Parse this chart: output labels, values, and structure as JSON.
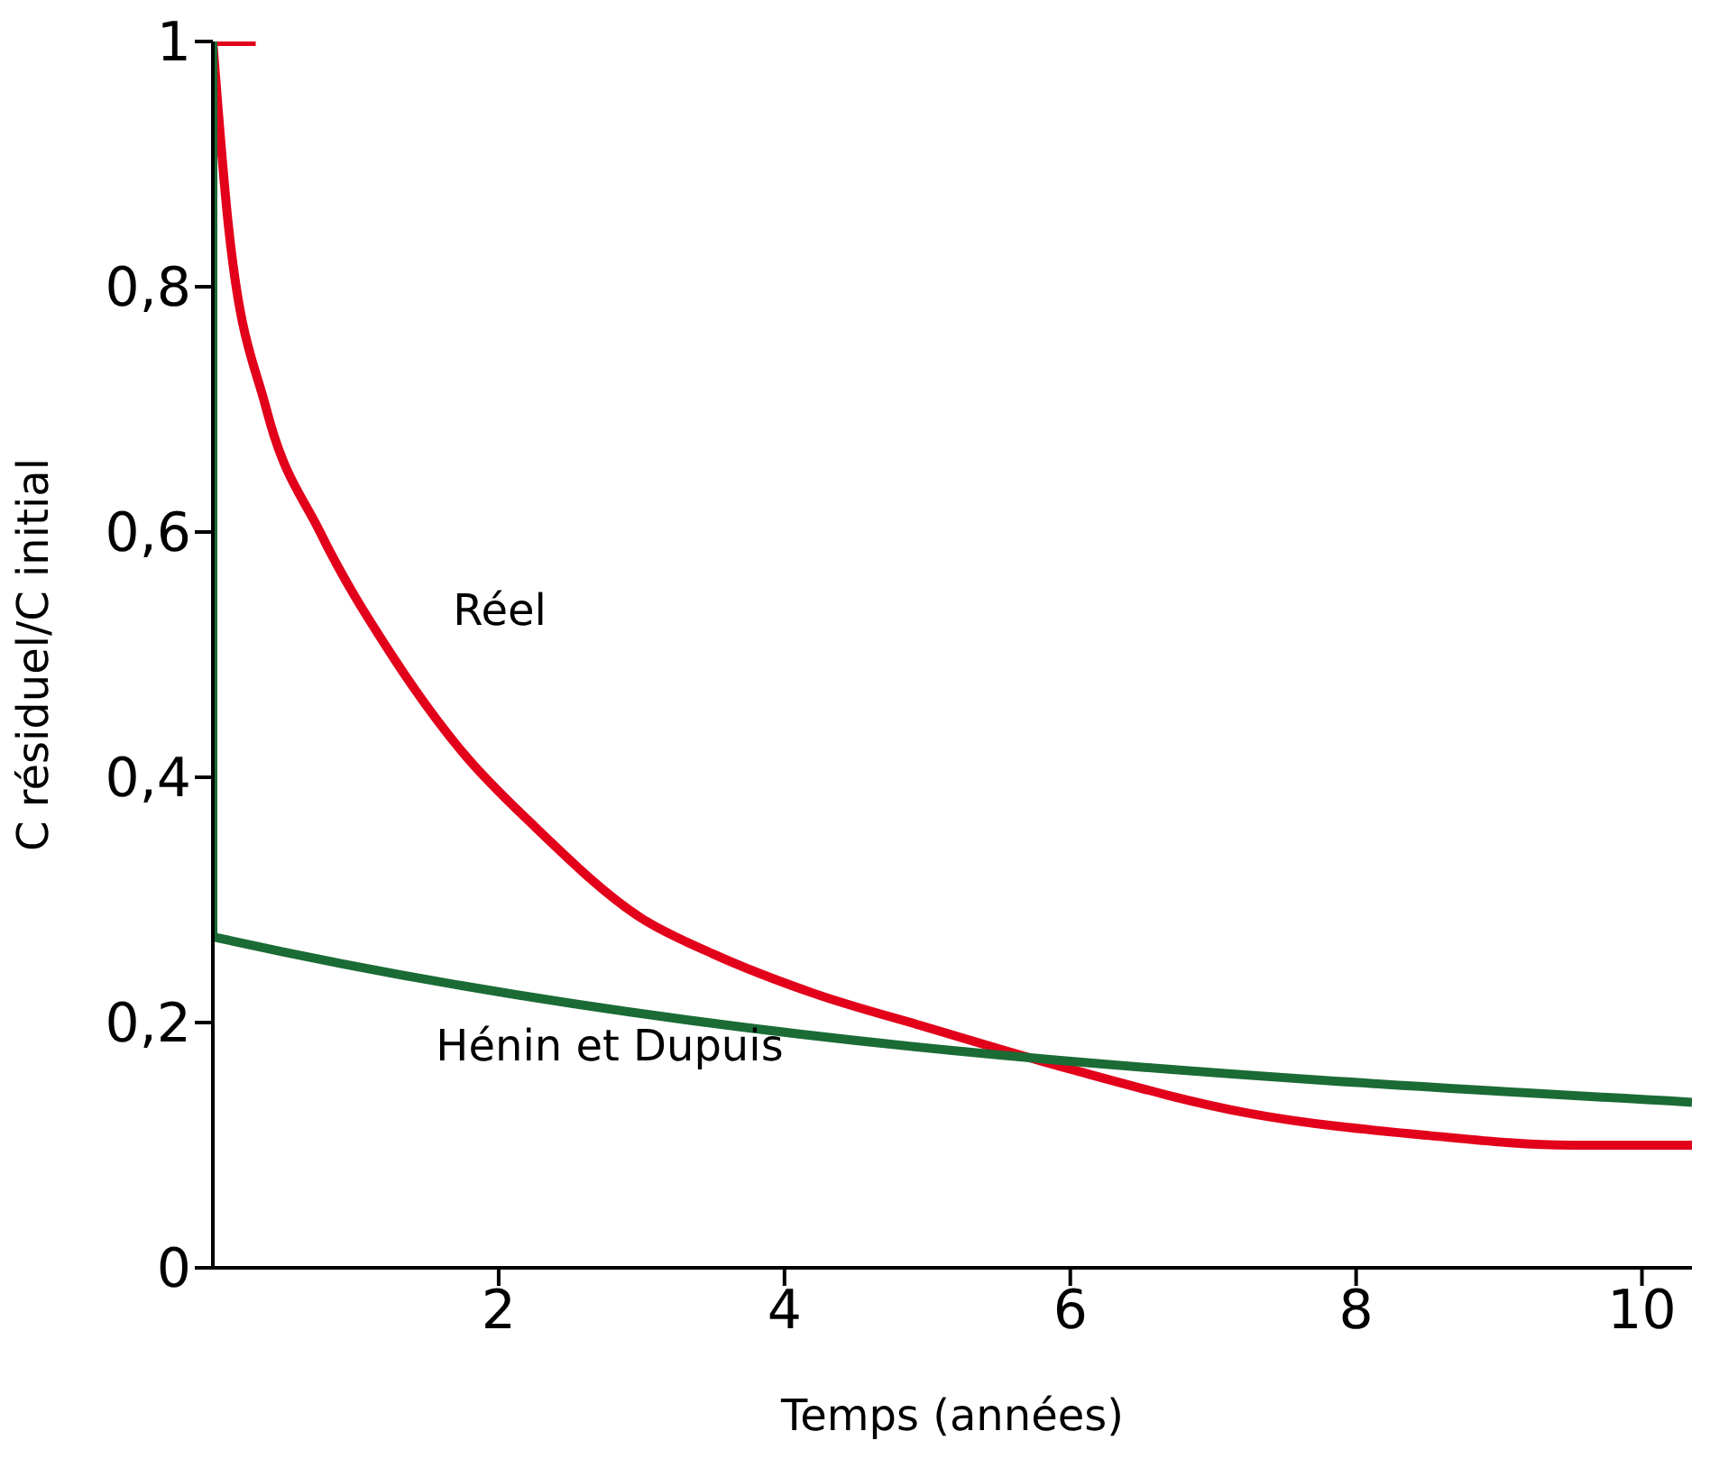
{
  "chart_data": {
    "type": "line",
    "xlabel": "Temps (années)",
    "ylabel": "C résiduel/C initial",
    "xlim": [
      0,
      10.35
    ],
    "xticks": [
      2,
      4,
      6,
      8,
      10
    ],
    "ylim": [
      0,
      1
    ],
    "yticks": [
      0,
      {
        "value": 0.2,
        "label": "0,2"
      },
      {
        "value": 0.4,
        "label": "0,4"
      },
      {
        "value": 0.6,
        "label": "0,6"
      },
      {
        "value": 0.8,
        "label": "0,8"
      },
      1
    ],
    "grid": false,
    "legend": false,
    "marker": "none",
    "line_style": "solid",
    "series": [
      {
        "name": "Réel",
        "color": "#e2001a",
        "x": [
          0,
          0.1,
          0.375,
          0.75,
          1.25,
          1.75,
          2.25,
          3,
          3.5,
          4.2,
          5,
          6,
          7.25,
          8.5,
          9.5,
          10.35
        ],
        "values": [
          1,
          0.86,
          0.7,
          0.6,
          0.5,
          0.42,
          0.36,
          0.285,
          0.256,
          0.224,
          0.196,
          0.162,
          0.126,
          0.108,
          0.1,
          0.1
        ]
      },
      {
        "color": "#e2001a",
        "x": [
          0,
          0.3
        ],
        "values": [
          1,
          1
        ]
      },
      {
        "name": "Hénin et Dupuis",
        "color": "#1b6b35",
        "x": [
          0,
          0,
          10.35
        ],
        "values": [
          1,
          0.27,
          0.135
        ]
      }
    ]
  }
}
